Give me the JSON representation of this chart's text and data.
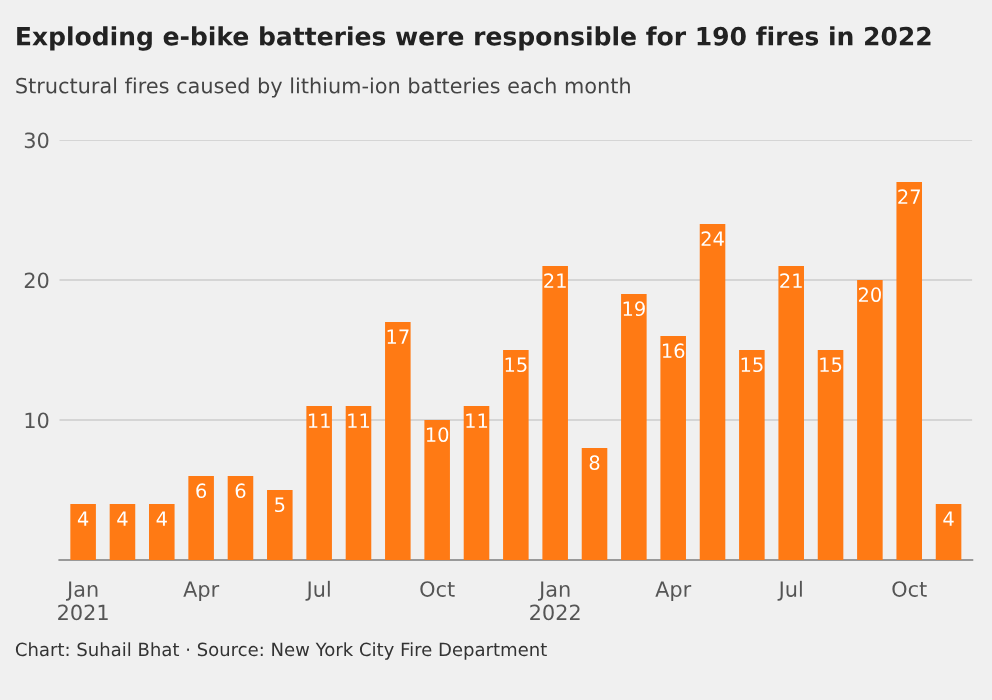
{
  "chart_data": {
    "type": "bar",
    "title": "Exploding e-bike batteries were responsible for 190 fires in 2022",
    "subtitle": "Structural fires caused by lithium-ion batteries each month",
    "categories": [
      "Jan\n2021",
      null,
      null,
      "Apr",
      null,
      null,
      "Jul",
      null,
      null,
      "Oct",
      null,
      null,
      "Jan\n2022",
      null,
      null,
      "Apr",
      null,
      null,
      "Jul",
      null,
      null,
      "Oct",
      null
    ],
    "values": [
      4,
      4,
      4,
      6,
      6,
      5,
      11,
      11,
      17,
      10,
      11,
      15,
      21,
      8,
      19,
      16,
      24,
      15,
      21,
      15,
      20,
      27,
      4
    ],
    "color": "#ff7a14",
    "ylim": [
      0,
      30
    ],
    "yticks": [
      {
        "value": 0,
        "label": null
      },
      10,
      20,
      30
    ],
    "grid": "y",
    "data_labels": true,
    "annotations": [
      "Chart: Suhail Bhat · Source: New York City Fire Department"
    ]
  }
}
